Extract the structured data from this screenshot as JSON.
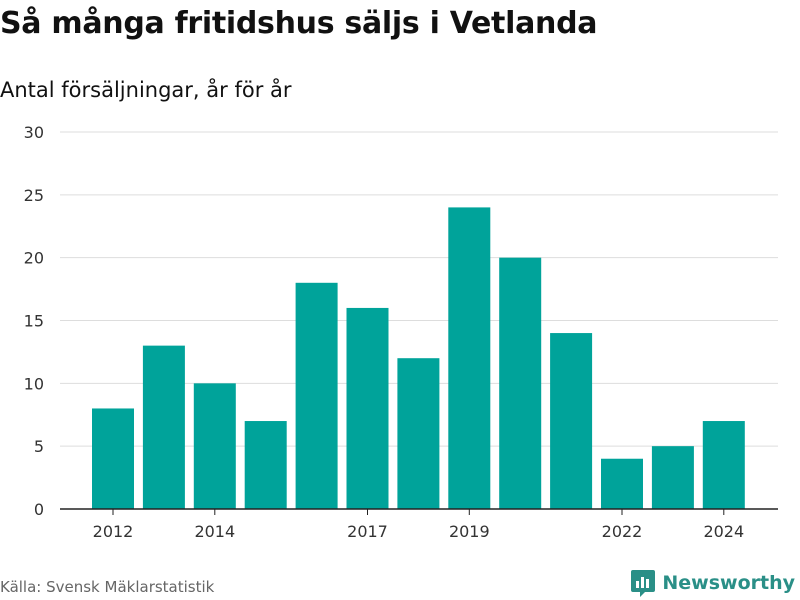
{
  "header": {
    "title": "Så många fritidshus säljs i Vetlanda",
    "subtitle": "Antal försäljningar, år för år"
  },
  "footer": {
    "source": "Källa: Svensk Mäklarstatistik",
    "brand": "Newsworthy"
  },
  "colors": {
    "bar": "#00a39a",
    "grid": "#dddddd",
    "axis": "#222222",
    "brand": "#2a8f87"
  },
  "chart_data": {
    "type": "bar",
    "categories": [
      "2012",
      "2013",
      "2014",
      "2015",
      "2016",
      "2017",
      "2018",
      "2019",
      "2020",
      "2021",
      "2022",
      "2023",
      "2024"
    ],
    "values": [
      8,
      13,
      10,
      7,
      18,
      16,
      12,
      24,
      20,
      14,
      4,
      5,
      7
    ],
    "x_tick_labels": [
      "2012",
      "2014",
      "2017",
      "2019",
      "2022",
      "2024"
    ],
    "y_ticks": [
      0,
      5,
      10,
      15,
      20,
      25,
      30
    ],
    "ylim": [
      0,
      30
    ],
    "title": "Så många fritidshus säljs i Vetlanda",
    "subtitle": "Antal försäljningar, år för år",
    "grid": true
  }
}
